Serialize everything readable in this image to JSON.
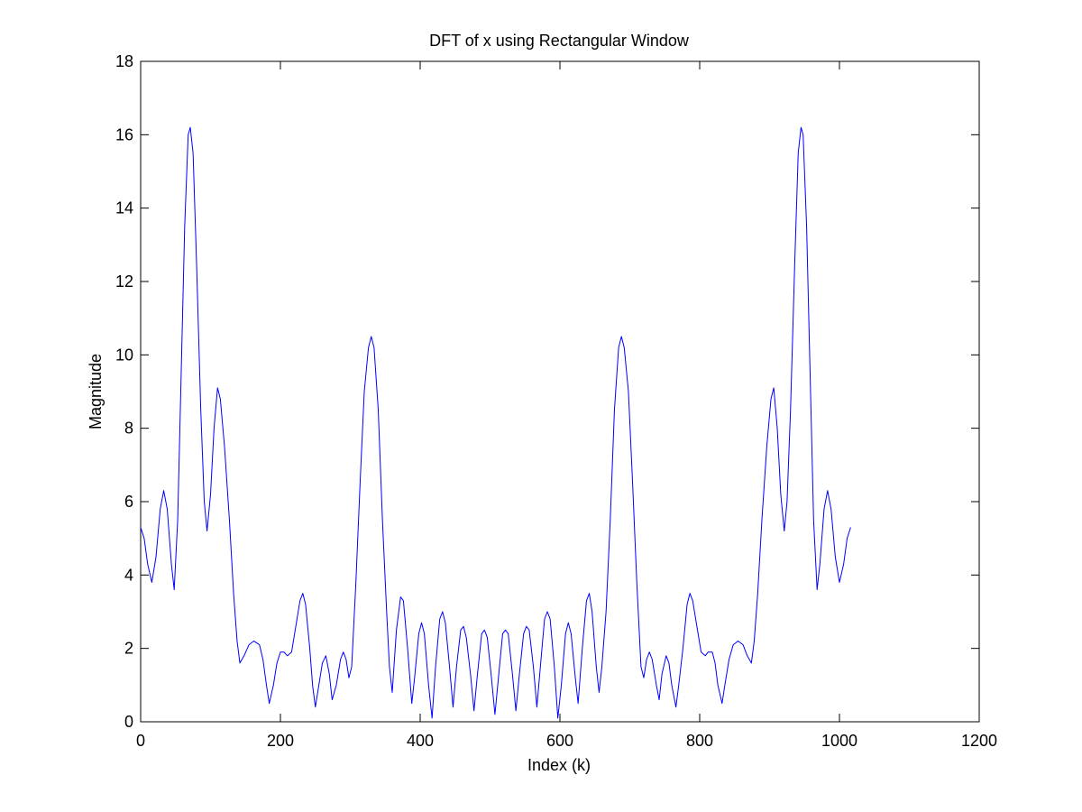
{
  "chart_data": {
    "type": "line",
    "title": "DFT of x using Rectangular Window",
    "xlabel": "Index (k)",
    "ylabel": "Magnitude",
    "xlim": [
      0,
      1200
    ],
    "ylim": [
      0,
      18
    ],
    "xticks": [
      0,
      200,
      400,
      600,
      800,
      1000,
      1200
    ],
    "yticks": [
      0,
      2,
      4,
      6,
      8,
      10,
      12,
      14,
      16,
      18
    ],
    "grid": false,
    "legend": "none",
    "series": [
      {
        "color": "#0000ff",
        "points": [
          [
            0,
            5.3
          ],
          [
            5,
            5.0
          ],
          [
            10,
            4.3
          ],
          [
            16,
            3.8
          ],
          [
            22,
            4.5
          ],
          [
            28,
            5.8
          ],
          [
            33,
            6.3
          ],
          [
            38,
            5.8
          ],
          [
            44,
            4.3
          ],
          [
            48,
            3.6
          ],
          [
            53,
            5.5
          ],
          [
            58,
            9.5
          ],
          [
            63,
            13.5
          ],
          [
            68,
            16.0
          ],
          [
            71,
            16.2
          ],
          [
            75,
            15.5
          ],
          [
            80,
            12.5
          ],
          [
            86,
            8.5
          ],
          [
            91,
            6.0
          ],
          [
            95,
            5.2
          ],
          [
            100,
            6.2
          ],
          [
            105,
            8.0
          ],
          [
            110,
            9.1
          ],
          [
            114,
            8.8
          ],
          [
            120,
            7.5
          ],
          [
            127,
            5.5
          ],
          [
            133,
            3.5
          ],
          [
            138,
            2.2
          ],
          [
            142,
            1.6
          ],
          [
            148,
            1.8
          ],
          [
            155,
            2.1
          ],
          [
            162,
            2.2
          ],
          [
            170,
            2.1
          ],
          [
            175,
            1.7
          ],
          [
            180,
            1.0
          ],
          [
            184,
            0.5
          ],
          [
            190,
            1.0
          ],
          [
            195,
            1.6
          ],
          [
            200,
            1.9
          ],
          [
            205,
            1.9
          ],
          [
            210,
            1.8
          ],
          [
            216,
            1.9
          ],
          [
            222,
            2.6
          ],
          [
            228,
            3.3
          ],
          [
            232,
            3.5
          ],
          [
            236,
            3.2
          ],
          [
            242,
            2.0
          ],
          [
            246,
            1.0
          ],
          [
            250,
            0.4
          ],
          [
            255,
            1.0
          ],
          [
            260,
            1.6
          ],
          [
            265,
            1.8
          ],
          [
            270,
            1.3
          ],
          [
            274,
            0.6
          ],
          [
            280,
            1.0
          ],
          [
            286,
            1.7
          ],
          [
            290,
            1.9
          ],
          [
            294,
            1.7
          ],
          [
            298,
            1.2
          ],
          [
            302,
            1.5
          ],
          [
            308,
            3.8
          ],
          [
            314,
            6.5
          ],
          [
            320,
            9.0
          ],
          [
            326,
            10.2
          ],
          [
            330,
            10.5
          ],
          [
            334,
            10.2
          ],
          [
            340,
            8.5
          ],
          [
            346,
            5.5
          ],
          [
            352,
            3.0
          ],
          [
            356,
            1.5
          ],
          [
            360,
            0.8
          ],
          [
            366,
            2.5
          ],
          [
            372,
            3.4
          ],
          [
            376,
            3.3
          ],
          [
            382,
            2.0
          ],
          [
            388,
            0.5
          ],
          [
            392,
            1.2
          ],
          [
            398,
            2.4
          ],
          [
            402,
            2.7
          ],
          [
            406,
            2.4
          ],
          [
            412,
            1.0
          ],
          [
            417,
            0.1
          ],
          [
            422,
            1.5
          ],
          [
            428,
            2.8
          ],
          [
            432,
            3.0
          ],
          [
            436,
            2.7
          ],
          [
            442,
            1.5
          ],
          [
            447,
            0.4
          ],
          [
            452,
            1.5
          ],
          [
            458,
            2.5
          ],
          [
            462,
            2.6
          ],
          [
            466,
            2.3
          ],
          [
            472,
            1.3
          ],
          [
            477,
            0.3
          ],
          [
            482,
            1.3
          ],
          [
            488,
            2.4
          ],
          [
            492,
            2.5
          ],
          [
            496,
            2.3
          ],
          [
            502,
            1.2
          ],
          [
            507,
            0.2
          ],
          [
            512,
            1.2
          ],
          [
            518,
            2.4
          ],
          [
            522,
            2.5
          ],
          [
            526,
            2.4
          ],
          [
            532,
            1.3
          ],
          [
            537,
            0.3
          ],
          [
            542,
            1.3
          ],
          [
            548,
            2.4
          ],
          [
            552,
            2.6
          ],
          [
            556,
            2.5
          ],
          [
            562,
            1.5
          ],
          [
            567,
            0.4
          ],
          [
            572,
            1.5
          ],
          [
            578,
            2.8
          ],
          [
            582,
            3.0
          ],
          [
            586,
            2.8
          ],
          [
            592,
            1.5
          ],
          [
            597,
            0.1
          ],
          [
            602,
            1.0
          ],
          [
            608,
            2.4
          ],
          [
            612,
            2.7
          ],
          [
            616,
            2.4
          ],
          [
            622,
            1.2
          ],
          [
            626,
            0.5
          ],
          [
            632,
            2.0
          ],
          [
            638,
            3.3
          ],
          [
            642,
            3.5
          ],
          [
            646,
            3.0
          ],
          [
            652,
            1.5
          ],
          [
            656,
            0.8
          ],
          [
            660,
            1.5
          ],
          [
            666,
            3.0
          ],
          [
            672,
            5.5
          ],
          [
            678,
            8.5
          ],
          [
            684,
            10.2
          ],
          [
            688,
            10.5
          ],
          [
            692,
            10.2
          ],
          [
            698,
            9.0
          ],
          [
            704,
            6.5
          ],
          [
            710,
            3.8
          ],
          [
            716,
            1.5
          ],
          [
            720,
            1.2
          ],
          [
            724,
            1.7
          ],
          [
            728,
            1.9
          ],
          [
            732,
            1.7
          ],
          [
            738,
            1.0
          ],
          [
            742,
            0.6
          ],
          [
            746,
            1.3
          ],
          [
            752,
            1.8
          ],
          [
            756,
            1.6
          ],
          [
            760,
            1.0
          ],
          [
            766,
            0.4
          ],
          [
            770,
            1.0
          ],
          [
            776,
            2.0
          ],
          [
            782,
            3.2
          ],
          [
            786,
            3.5
          ],
          [
            790,
            3.3
          ],
          [
            796,
            2.6
          ],
          [
            802,
            1.9
          ],
          [
            808,
            1.8
          ],
          [
            812,
            1.9
          ],
          [
            818,
            1.9
          ],
          [
            822,
            1.6
          ],
          [
            826,
            1.0
          ],
          [
            832,
            0.5
          ],
          [
            836,
            1.0
          ],
          [
            842,
            1.7
          ],
          [
            848,
            2.1
          ],
          [
            855,
            2.2
          ],
          [
            862,
            2.1
          ],
          [
            868,
            1.8
          ],
          [
            874,
            1.6
          ],
          [
            878,
            2.2
          ],
          [
            883,
            3.5
          ],
          [
            889,
            5.5
          ],
          [
            896,
            7.5
          ],
          [
            902,
            8.8
          ],
          [
            906,
            9.1
          ],
          [
            911,
            8.0
          ],
          [
            916,
            6.2
          ],
          [
            921,
            5.2
          ],
          [
            925,
            6.0
          ],
          [
            930,
            8.5
          ],
          [
            936,
            12.5
          ],
          [
            941,
            15.5
          ],
          [
            945,
            16.2
          ],
          [
            948,
            16.0
          ],
          [
            953,
            13.5
          ],
          [
            958,
            9.5
          ],
          [
            963,
            5.5
          ],
          [
            968,
            3.6
          ],
          [
            972,
            4.3
          ],
          [
            978,
            5.8
          ],
          [
            983,
            6.3
          ],
          [
            988,
            5.8
          ],
          [
            994,
            4.5
          ],
          [
            1000,
            3.8
          ],
          [
            1006,
            4.3
          ],
          [
            1011,
            5.0
          ],
          [
            1016,
            5.3
          ]
        ]
      }
    ]
  }
}
